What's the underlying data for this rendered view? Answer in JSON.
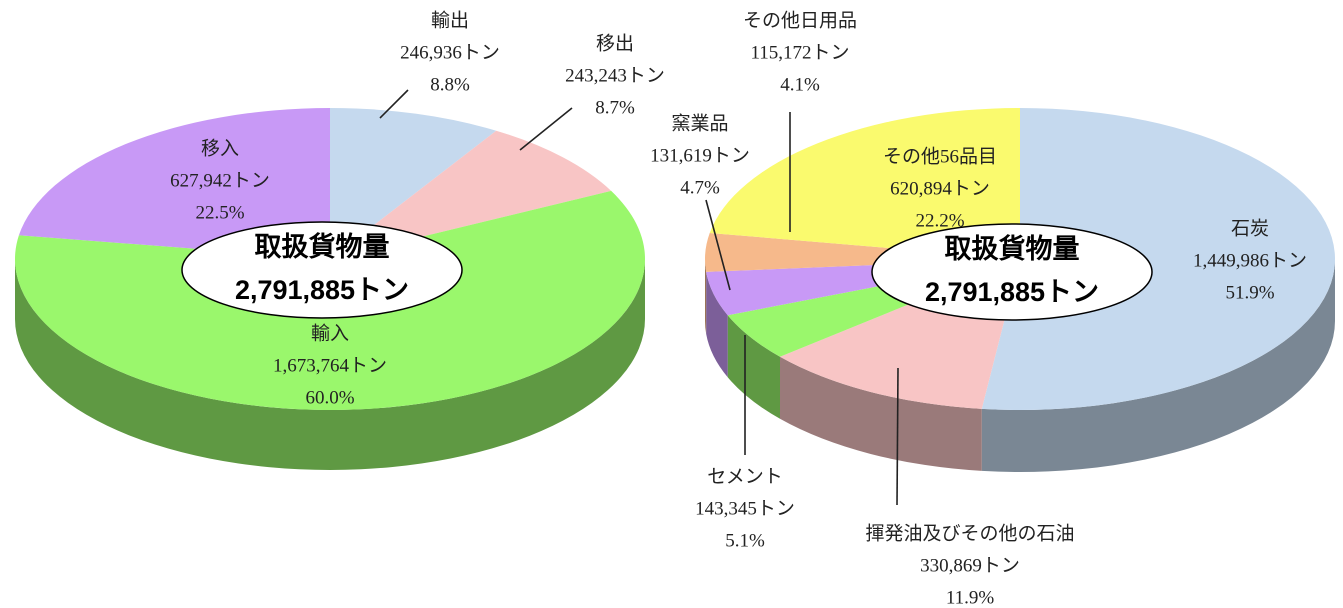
{
  "chart_data": [
    {
      "type": "pie",
      "center_title": "取扱貨物量",
      "total": {
        "value": 2791885,
        "label": "2,791,885トン"
      },
      "categories": [
        "輸出",
        "移出",
        "輸入",
        "移入"
      ],
      "values": [
        246936,
        243243,
        1673764,
        627942
      ],
      "value_labels": [
        "246,936トン",
        "243,243トン",
        "1,673,764トン",
        "627,942トン"
      ],
      "percents": [
        8.8,
        8.7,
        60.0,
        22.5
      ],
      "percent_labels": [
        "8.8%",
        "8.7%",
        "60.0%",
        "22.5%"
      ],
      "colors": [
        "#c5d9ee",
        "#f8c5c5",
        "#9af76c",
        "#c899f6"
      ]
    },
    {
      "type": "pie",
      "center_title": "取扱貨物量",
      "total": {
        "value": 2791885,
        "label": "2,791,885トン"
      },
      "categories": [
        "石炭",
        "揮発油及びその他の石油",
        "セメント",
        "窯業品",
        "その他日用品",
        "その他56品目"
      ],
      "values": [
        1449986,
        330869,
        143345,
        131619,
        115172,
        620894
      ],
      "value_labels": [
        "1,449,986トン",
        "330,869トン",
        "143,345トン",
        "131,619トン",
        "115,172トン",
        "620,894トン"
      ],
      "percents": [
        51.9,
        11.9,
        5.1,
        4.7,
        4.1,
        22.2
      ],
      "percent_labels": [
        "51.9%",
        "11.9%",
        "5.1%",
        "4.7%",
        "4.1%",
        "22.2%"
      ],
      "colors": [
        "#c5d9ee",
        "#f8c5c5",
        "#9af76c",
        "#c899f6",
        "#f6b98b",
        "#fafa6e"
      ]
    }
  ]
}
